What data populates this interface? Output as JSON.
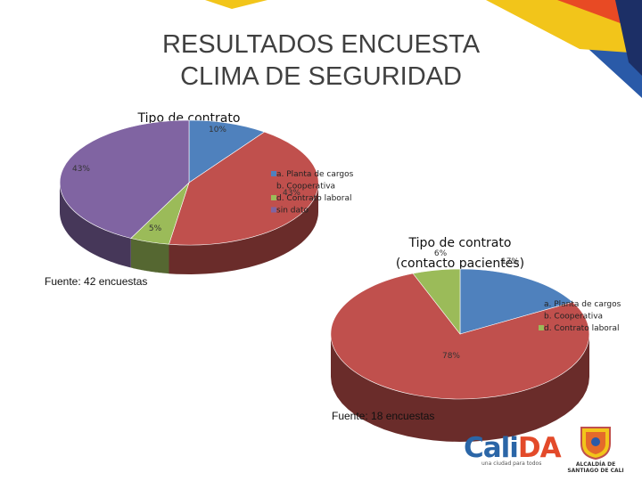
{
  "slide": {
    "title_line1": "RESULTADOS ENCUESTA",
    "title_line2": "CLIMA DE SEGURIDAD"
  },
  "chart_data": [
    {
      "type": "pie",
      "title": "Tipo de contrato",
      "categories": [
        "a. Planta de cargos",
        "b. Cooperativa",
        "d. Contrato laboral",
        "sin dato"
      ],
      "values": [
        10,
        43,
        5,
        43
      ],
      "labels": [
        "10%",
        "43%",
        "5%",
        "43%"
      ],
      "colors": [
        "#4f81bd",
        "#c0504d",
        "#9bbb59",
        "#8064a2"
      ],
      "source": "Fuente: 42 encuestas",
      "legend": "right"
    },
    {
      "type": "pie",
      "title": "Tipo de contrato (contacto pacientes)",
      "categories": [
        "a. Planta de cargos",
        "b. Cooperativa",
        "d. Contrato laboral"
      ],
      "values": [
        17,
        78,
        6
      ],
      "labels": [
        "17%",
        "78%",
        "6%"
      ],
      "colors": [
        "#4f81bd",
        "#c0504d",
        "#9bbb59"
      ],
      "source": "Fuente: 18 encuestas",
      "legend": "right"
    }
  ],
  "footer": {
    "logo_text_a": "Cali",
    "logo_text_b": "DA",
    "logo_tagline": "una ciudad para todos",
    "alcaldia_line1": "ALCALDÍA DE",
    "alcaldia_line2": "SANTIAGO DE CALI"
  }
}
